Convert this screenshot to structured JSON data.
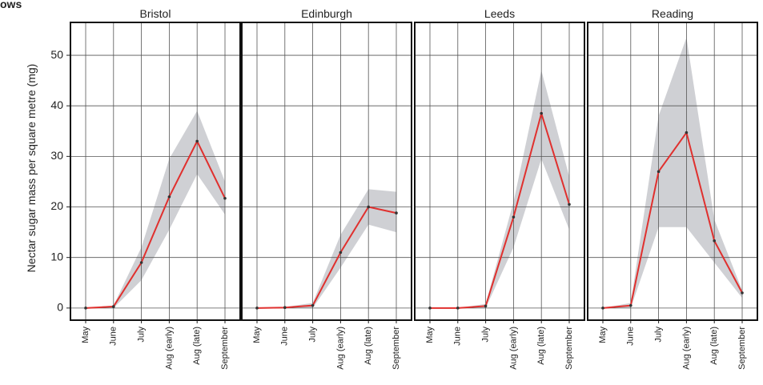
{
  "fragment": "ows",
  "y_label": "Nectar sugar mass per square metre (mg)",
  "chart_data": [
    {
      "type": "line",
      "title": "Bristol",
      "categories": [
        "May",
        "June",
        "July",
        "Aug (early)",
        "Aug (late)",
        "September"
      ],
      "values": [
        0,
        0.3,
        9,
        22,
        33,
        21.7
      ],
      "lower": [
        0,
        0,
        5.5,
        15.5,
        26.5,
        18.5
      ],
      "upper": [
        0,
        0.5,
        12,
        29.5,
        39,
        25
      ],
      "color": "#e0302e",
      "band_color": "#cfd0d4",
      "ylim": [
        -2.4,
        56.5
      ],
      "yticks": [
        0,
        10,
        20,
        30,
        40,
        50
      ],
      "grid": true
    },
    {
      "type": "line",
      "title": "Edinburgh",
      "categories": [
        "May",
        "June",
        "July",
        "Aug (early)",
        "Aug (late)",
        "September"
      ],
      "values": [
        0,
        0.1,
        0.5,
        11,
        20,
        18.8
      ],
      "lower": [
        0,
        0,
        0,
        8,
        16.5,
        15
      ],
      "upper": [
        0,
        0.2,
        1,
        14.5,
        23.5,
        23
      ],
      "color": "#e0302e",
      "band_color": "#cfd0d4",
      "ylim": [
        -2.4,
        56.5
      ],
      "yticks": [
        0,
        10,
        20,
        30,
        40,
        50
      ],
      "grid": true
    },
    {
      "type": "line",
      "title": "Leeds",
      "categories": [
        "May",
        "June",
        "July",
        "Aug (early)",
        "Aug (late)",
        "September"
      ],
      "values": [
        0,
        0,
        0.4,
        18,
        38.5,
        20.5
      ],
      "lower": [
        0,
        0,
        0,
        12,
        29.5,
        15.5
      ],
      "upper": [
        0,
        0,
        0.8,
        21,
        47,
        26
      ],
      "color": "#e0302e",
      "band_color": "#cfd0d4",
      "ylim": [
        -2.4,
        56.5
      ],
      "yticks": [
        0,
        10,
        20,
        30,
        40,
        50
      ],
      "grid": true
    },
    {
      "type": "line",
      "title": "Reading",
      "categories": [
        "May",
        "June",
        "July",
        "Aug (early)",
        "Aug (late)",
        "September"
      ],
      "values": [
        0,
        0.5,
        27,
        34.7,
        13.3,
        3
      ],
      "lower": [
        0,
        0,
        16,
        16,
        9,
        2
      ],
      "upper": [
        0,
        1,
        38,
        53.5,
        17.5,
        3.5
      ],
      "color": "#e0302e",
      "band_color": "#cfd0d4",
      "ylim": [
        -2.4,
        56.5
      ],
      "yticks": [
        0,
        10,
        20,
        30,
        40,
        50
      ],
      "grid": true
    }
  ]
}
